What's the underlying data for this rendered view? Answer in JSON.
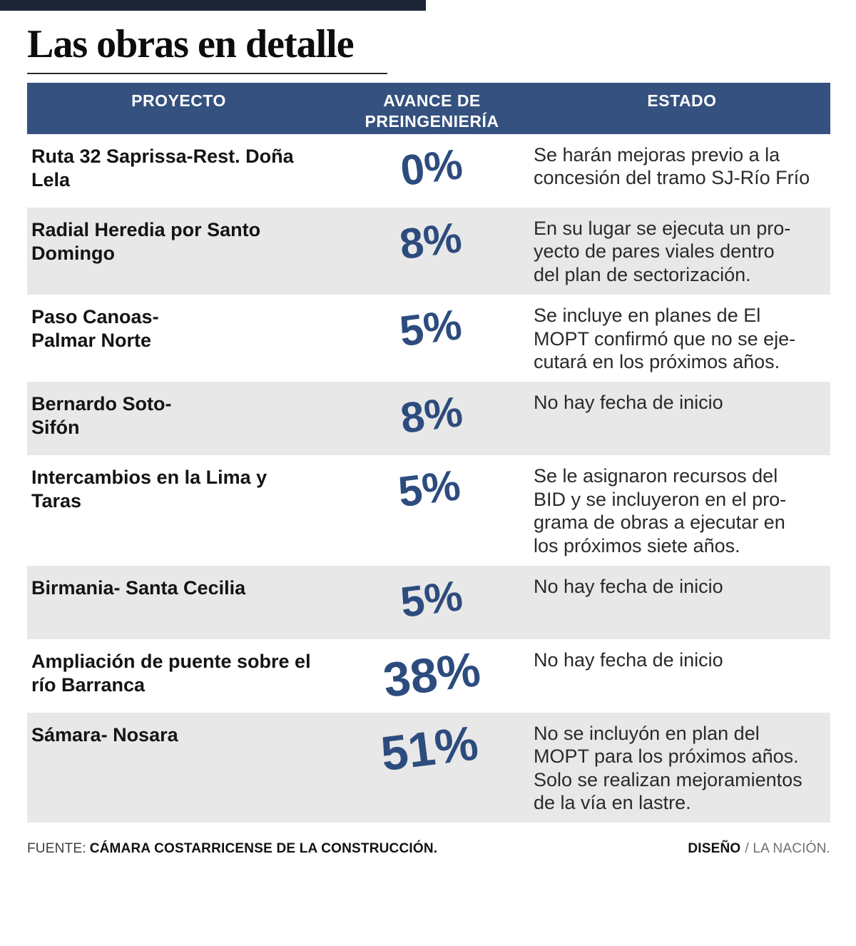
{
  "title": "Las obras en detalle",
  "table": {
    "headers": {
      "proyecto": "PROYECTO",
      "avance": "AVANCE DE\nPREINGENIERÍA",
      "estado": "ESTADO"
    },
    "rows": [
      {
        "proyecto": "Ruta 32 Saprissa-Rest. Doña\nLela",
        "avance": "0%",
        "estado": "Se harán mejoras previo a la\nconcesión del tramo SJ-Río Frío"
      },
      {
        "proyecto": "Radial Heredia por Santo\nDomingo",
        "avance": "8%",
        "estado": "En su lugar se ejecuta un pro-\nyecto de pares viales dentro\ndel plan de sectorización."
      },
      {
        "proyecto": "Paso Canoas-\nPalmar Norte",
        "avance": "5%",
        "estado": "Se incluye en planes de El\nMOPT confirmó que no se eje-\ncutará en los próximos años."
      },
      {
        "proyecto": "Bernardo Soto-\nSifón",
        "avance": "8%",
        "estado": "No hay fecha de inicio"
      },
      {
        "proyecto": "Intercambios en la Lima y Taras",
        "avance": "5%",
        "estado": "Se le asignaron recursos del\nBID y se incluyeron en el pro-\ngrama de obras a ejecutar en\nlos próximos siete años."
      },
      {
        "proyecto": "Birmania- Santa Cecilia",
        "avance": "5%",
        "estado": "No hay fecha de inicio"
      },
      {
        "proyecto": "Ampliación de puente sobre el\nrío Barranca",
        "avance": "38%",
        "estado": "No hay fecha de inicio"
      },
      {
        "proyecto": "Sámara- Nosara",
        "avance": "51%",
        "estado": "No se incluyón en plan del\nMOPT para los próximos años.\nSolo se realizan mejoramientos\nde la vía en lastre."
      }
    ]
  },
  "footer": {
    "source_label": "FUENTE:",
    "source_value": "CÁMARA COSTARRICENSE DE LA CONSTRUCCIÓN.",
    "design_label": "DISEÑO",
    "design_value": "/ LA NACIÓN."
  },
  "colors": {
    "top_bar": "#1b2534",
    "header_bg": "#35517f",
    "header_text": "#ffffff",
    "percent_text": "#2d4c7e",
    "row_alt_bg": "#e8e8e9",
    "body_text": "#141414"
  },
  "chart_data": {
    "type": "table",
    "title": "Las obras en detalle",
    "columns": [
      "PROYECTO",
      "AVANCE DE PREINGENIERÍA",
      "ESTADO"
    ],
    "rows": [
      [
        "Ruta 32 Saprissa-Rest. Doña Lela",
        "0%",
        "Se harán mejoras previo a la concesión del tramo SJ-Río Frío"
      ],
      [
        "Radial Heredia por Santo Domingo",
        "8%",
        "En su lugar se ejecuta un proyecto de pares viales dentro del plan de sectorización."
      ],
      [
        "Paso Canoas- Palmar Norte",
        "5%",
        "Se incluye en planes de El MOPT confirmó que no se ejecutará en los próximos años."
      ],
      [
        "Bernardo Soto- Sifón",
        "8%",
        "No hay fecha de inicio"
      ],
      [
        "Intercambios en la Lima y Taras",
        "5%",
        "Se le asignaron recursos del BID y se incluyeron en el programa de obras a ejecutar en los próximos siete años."
      ],
      [
        "Birmania- Santa Cecilia",
        "5%",
        "No hay fecha de inicio"
      ],
      [
        "Ampliación de puente sobre el río Barranca",
        "38%",
        "No hay fecha de inicio"
      ],
      [
        "Sámara- Nosara",
        "51%",
        "No se incluyón en plan del MOPT para los próximos años. Solo se realizan mejoramientos de la vía en lastre."
      ]
    ],
    "avance_pct_values": [
      0,
      8,
      5,
      8,
      5,
      5,
      38,
      51
    ]
  }
}
